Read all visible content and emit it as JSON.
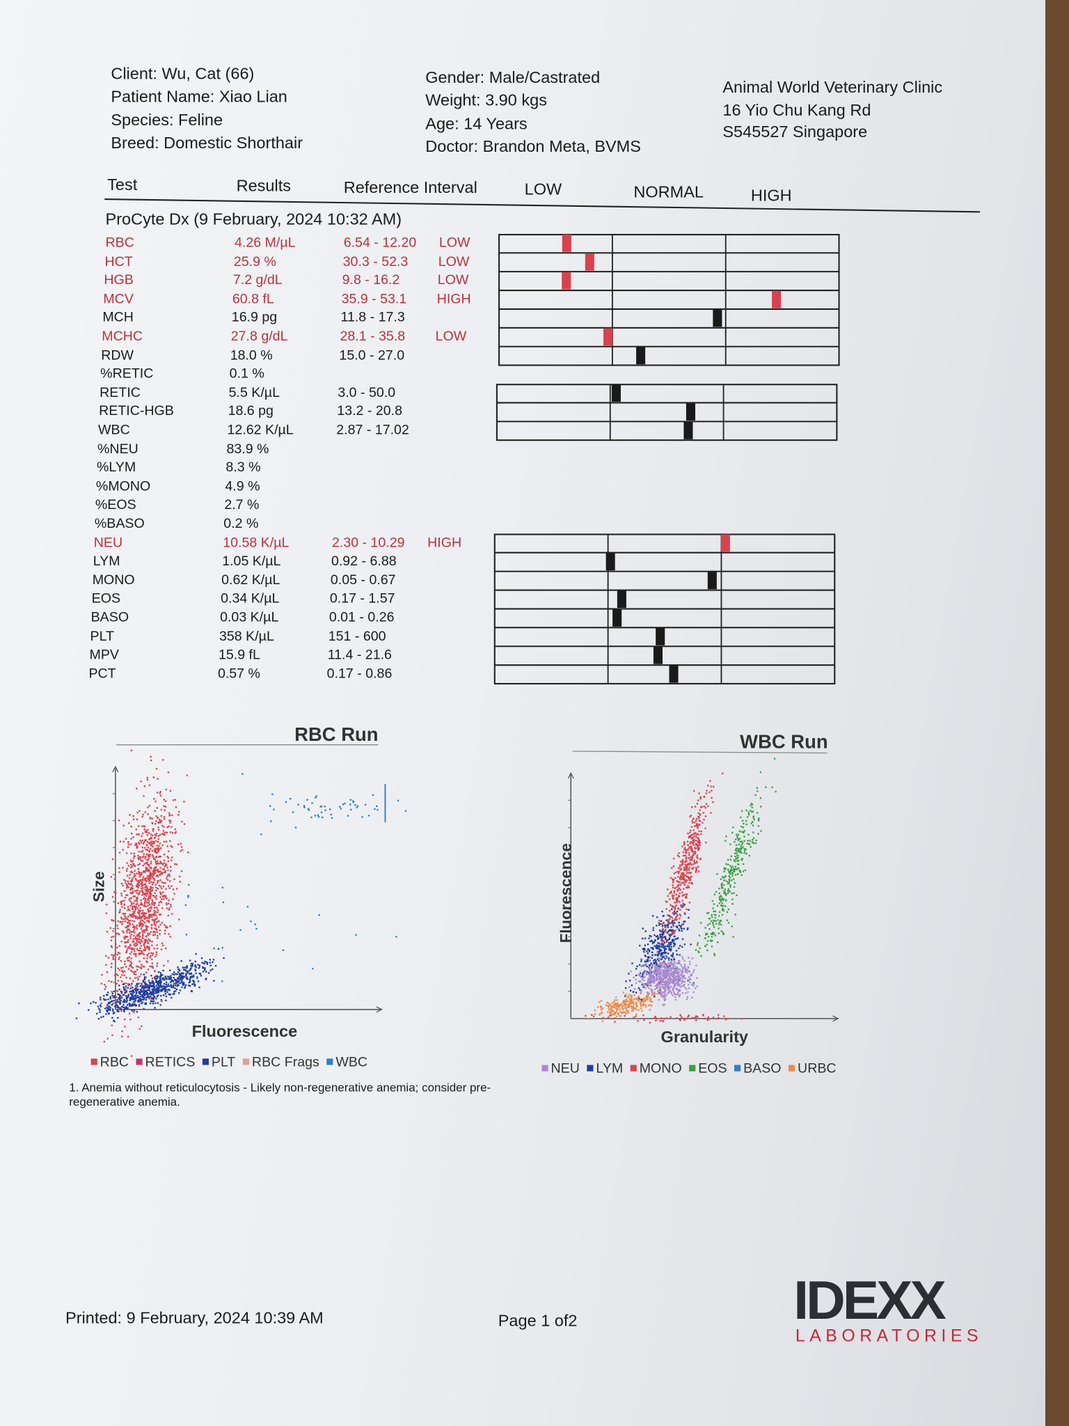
{
  "header": {
    "left": [
      "Client: Wu, Cat (66)",
      "Patient Name: Xiao Lian",
      "Species: Feline",
      "Breed: Domestic Shorthair"
    ],
    "middle": [
      "Gender: Male/Castrated",
      "Weight: 3.90 kgs",
      "Age: 14 Years",
      "Doctor: Brandon Meta, BVMS"
    ],
    "right": [
      "Animal World Veterinary Clinic",
      "16 Yio Chu Kang Rd",
      "S545527 Singapore"
    ]
  },
  "columns": [
    "Test",
    "Results",
    "Reference Interval",
    "LOW",
    "NORMAL",
    "HIGH"
  ],
  "section": "ProCyte Dx (9 February, 2024 10:32 AM)",
  "rows": [
    {
      "test": "RBC",
      "result": "4.26 M/µL",
      "reference": "6.54 - 12.20",
      "flag": "LOW"
    },
    {
      "test": "HCT",
      "result": "25.9 %",
      "reference": "30.3 - 52.3",
      "flag": "LOW"
    },
    {
      "test": "HGB",
      "result": "7.2 g/dL",
      "reference": "9.8 - 16.2",
      "flag": "LOW"
    },
    {
      "test": "MCV",
      "result": "60.8 fL",
      "reference": "35.9 - 53.1",
      "flag": "HIGH"
    },
    {
      "test": "MCH",
      "result": "16.9 pg",
      "reference": "11.8 - 17.3"
    },
    {
      "test": "MCHC",
      "result": "27.8 g/dL",
      "reference": "28.1 - 35.8",
      "flag": "LOW"
    },
    {
      "test": "RDW",
      "result": "18.0 %",
      "reference": "15.0 - 27.0"
    },
    {
      "test": "%RETIC",
      "result": "0.1 %"
    },
    {
      "test": "RETIC",
      "result": "5.5 K/µL",
      "reference": "3.0 - 50.0"
    },
    {
      "test": "RETIC-HGB",
      "result": "18.6 pg",
      "reference": "13.2 - 20.8"
    },
    {
      "test": "WBC",
      "result": "12.62 K/µL",
      "reference": "2.87 - 17.02"
    },
    {
      "test": "%NEU",
      "result": "83.9 %"
    },
    {
      "test": "%LYM",
      "result": "8.3 %"
    },
    {
      "test": "%MONO",
      "result": "4.9 %"
    },
    {
      "test": "%EOS",
      "result": "2.7 %"
    },
    {
      "test": "%BASO",
      "result": "0.2 %"
    },
    {
      "test": "NEU",
      "result": "10.58 K/µL",
      "reference": "2.30 - 10.29",
      "flag": "HIGH"
    },
    {
      "test": "LYM",
      "result": "1.05 K/µL",
      "reference": "0.92 - 6.88"
    },
    {
      "test": "MONO",
      "result": "0.62 K/µL",
      "reference": "0.05 - 0.67"
    },
    {
      "test": "EOS",
      "result": "0.34 K/µL",
      "reference": "0.17 - 1.57"
    },
    {
      "test": "BASO",
      "result": "0.03 K/µL",
      "reference": "0.01 - 0.26"
    },
    {
      "test": "PLT",
      "result": "358 K/µL",
      "reference": "151 - 600"
    },
    {
      "test": "MPV",
      "result": "15.9 fL",
      "reference": "11.4 - 21.6"
    },
    {
      "test": "PCT",
      "result": "0.57 %",
      "reference": "0.17 - 0.86"
    }
  ],
  "rbc_run": {
    "title": "RBC Run",
    "x_label": "Fluorescence",
    "y_label": "Size",
    "legend": [
      {
        "name": "RBC",
        "color": "#d9434f"
      },
      {
        "name": "RETICS",
        "color": "#c8326e"
      },
      {
        "name": "PLT",
        "color": "#1f3f9e"
      },
      {
        "name": "RBC Frags",
        "color": "#e79aa3"
      },
      {
        "name": "WBC",
        "color": "#2f7fc4"
      }
    ]
  },
  "wbc_run": {
    "title": "WBC Run",
    "x_label": "Granularity",
    "y_label": "Fluorescence",
    "legend": [
      {
        "name": "NEU",
        "color": "#a98bd1"
      },
      {
        "name": "LYM",
        "color": "#1f3f9e"
      },
      {
        "name": "MONO",
        "color": "#d9434f"
      },
      {
        "name": "EOS",
        "color": "#3aa043"
      },
      {
        "name": "BASO",
        "color": "#2f7fc4"
      },
      {
        "name": "URBC",
        "color": "#ec8a4a"
      }
    ]
  },
  "note": "1. Anemia without reticulocytosis - Likely non-regenerative anemia; consider pre-regenerative anemia.",
  "footer": {
    "printed": "Printed: 9 February, 2024 10:39 AM",
    "page": "Page 1 of2",
    "logo": "IDEXX",
    "logo_sub": "LABORATORIES"
  }
}
